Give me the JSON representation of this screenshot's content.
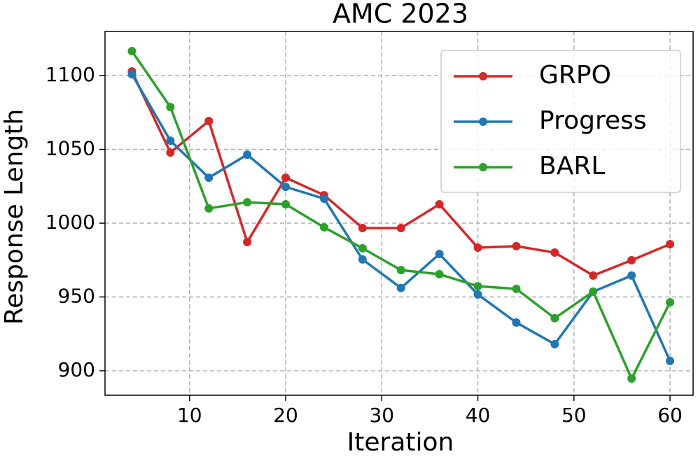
{
  "chart_data": {
    "type": "line",
    "title": "AMC 2023",
    "x_label": "Iteration",
    "y_label": "Response Length",
    "x": [
      4,
      8,
      12,
      16,
      20,
      24,
      28,
      32,
      36,
      40,
      44,
      48,
      52,
      56,
      60
    ],
    "series": [
      {
        "name": "GRPO",
        "color": "#d62728",
        "values": [
          1102.8,
          1047.9,
          1069.2,
          987.2,
          1030.8,
          1019,
          996.7,
          996.7,
          1012.8,
          983.4,
          984.4,
          980.1,
          964.5,
          974.9,
          985.8
        ]
      },
      {
        "name": "Progress",
        "color": "#1f77b4",
        "values": [
          1100.9,
          1055.9,
          1030.8,
          1046.4,
          1024.6,
          1016.6,
          975.4,
          956.1,
          979.1,
          951.7,
          932.7,
          918,
          953.6,
          964.5,
          906.6
        ]
      },
      {
        "name": "BARL",
        "color": "#2ca02c",
        "values": [
          1116.6,
          1078.7,
          1010,
          1014.2,
          1012.8,
          997.2,
          983,
          968.2,
          965.4,
          957.3,
          955.5,
          935.6,
          953.6,
          894.7,
          946.4
        ]
      }
    ],
    "xlim": [
      1.2,
      62.4
    ],
    "ylim": [
      883.4,
      1129.9
    ],
    "xticks": [
      10,
      20,
      30,
      40,
      50,
      60
    ],
    "yticks": [
      900,
      950,
      1000,
      1050,
      1100
    ],
    "grid": true,
    "legend": "upper right"
  }
}
